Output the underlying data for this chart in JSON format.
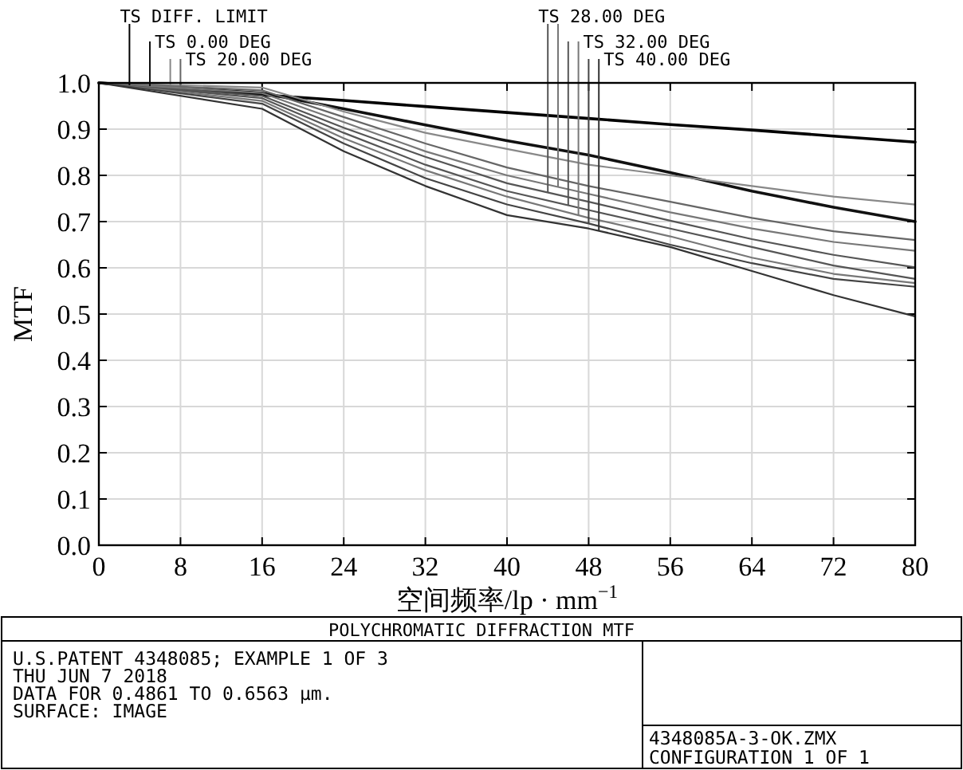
{
  "chart_data": {
    "type": "line",
    "title": "POLYCHROMATIC DIFFRACTION MTF",
    "xlabel": "空间频率/lp · mm$^{−1}$",
    "ylabel": "MTF",
    "x": [
      0,
      16,
      24,
      32,
      40,
      48,
      56,
      64,
      72,
      80
    ],
    "xlim": [
      0,
      80
    ],
    "xticks": [
      0,
      8,
      16,
      24,
      32,
      40,
      48,
      56,
      64,
      72,
      80
    ],
    "ylim": [
      0,
      1
    ],
    "yticks": [
      {
        "value": 0,
        "label": "0.0"
      },
      0.1,
      0.2,
      0.3,
      0.4,
      0.5,
      0.6,
      0.7,
      0.8,
      0.9,
      {
        "value": 1,
        "label": "1.0"
      }
    ],
    "grid": true,
    "legend": "top",
    "line_style": "solid",
    "series": [
      {
        "name": "TS DIFF. LIMIT",
        "color": "#000000",
        "values": [
          1,
          0.974,
          0.962,
          0.949,
          0.936,
          0.923,
          0.91,
          0.898,
          0.885,
          0.872
        ]
      },
      {
        "name": "TS 0.00 DEG",
        "color": "#111111",
        "values": [
          1,
          0.978,
          0.944,
          0.909,
          0.875,
          0.844,
          0.806,
          0.766,
          0.731,
          0.7
        ]
      },
      {
        "name": "TS 20.00 DEG",
        "color": "#888888",
        "values": [
          1,
          0.99,
          0.938,
          0.892,
          0.857,
          0.823,
          0.8,
          0.777,
          0.754,
          0.737
        ]
      },
      {
        "color": "#666666",
        "values": [
          1,
          0.984,
          0.926,
          0.869,
          0.817,
          0.777,
          0.743,
          0.708,
          0.679,
          0.66
        ]
      },
      {
        "name": "TS 28.00 DEG",
        "color": "#555555",
        "values": [
          1,
          0.972,
          0.903,
          0.84,
          0.783,
          0.743,
          0.702,
          0.662,
          0.628,
          0.601
        ]
      },
      {
        "color": "#777777",
        "values": [
          1,
          0.978,
          0.915,
          0.852,
          0.8,
          0.76,
          0.72,
          0.685,
          0.656,
          0.637
        ]
      },
      {
        "name": "TS 32.00 DEG",
        "color": "#555555",
        "values": [
          1,
          0.967,
          0.892,
          0.823,
          0.766,
          0.725,
          0.685,
          0.645,
          0.605,
          0.576
        ]
      },
      {
        "color": "#777777",
        "values": [
          1,
          0.961,
          0.88,
          0.811,
          0.754,
          0.708,
          0.668,
          0.622,
          0.587,
          0.567
        ]
      },
      {
        "name": "TS 40.00 DEG",
        "color": "#444444",
        "values": [
          1,
          0.955,
          0.869,
          0.794,
          0.737,
          0.696,
          0.65,
          0.61,
          0.576,
          0.559
        ]
      },
      {
        "color": "#333333",
        "values": [
          1,
          0.944,
          0.852,
          0.777,
          0.714,
          0.685,
          0.645,
          0.593,
          0.541,
          0.495
        ]
      }
    ],
    "annotations": [
      "U.S.PATENT 4348085; EXAMPLE 1 OF 3",
      "THU JUN 7 2018",
      "DATA FOR 0.4861 TO 0.6563 μm.",
      "SURFACE: IMAGE",
      "4348085A-3-OK.ZMX",
      "CONFIGURATION 1 OF 1"
    ]
  }
}
